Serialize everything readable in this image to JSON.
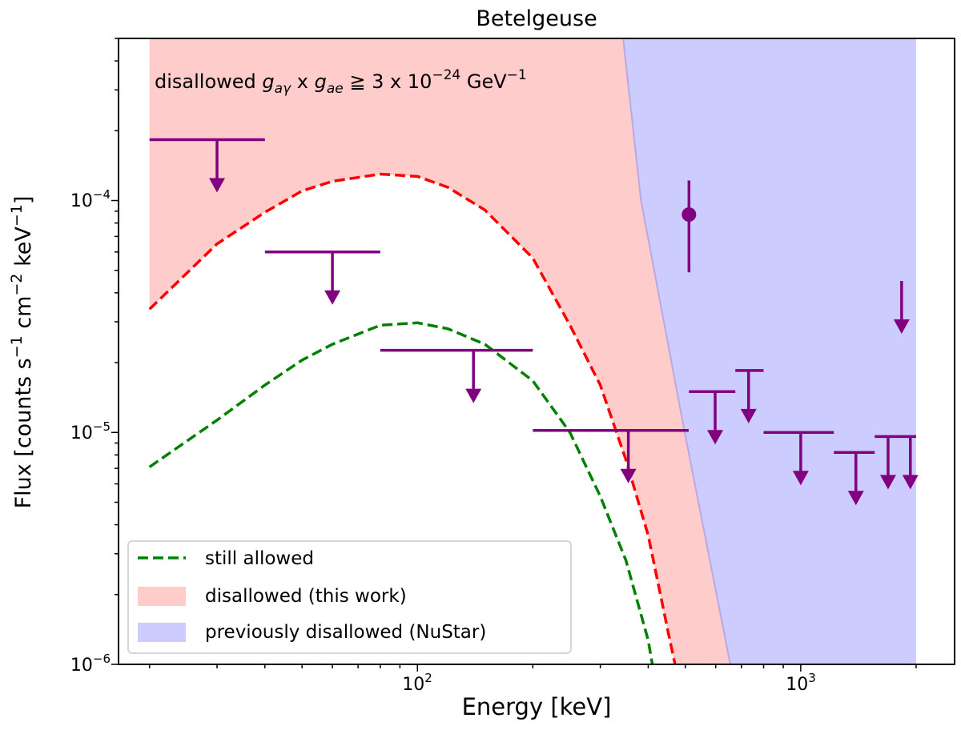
{
  "chart_data": {
    "type": "line",
    "title": "Betelgeuse",
    "xlabel": "Energy [keV]",
    "ylabel": {
      "base": "Flux [counts s",
      "e1": "−1",
      "mid1": " cm",
      "e2": "−2",
      "mid2": " keV",
      "e3": "−1",
      "end": "]"
    },
    "xscale": "log",
    "yscale": "log",
    "xlim": [
      16.6,
      2520
    ],
    "ylim": [
      1e-06,
      0.0005
    ],
    "grid": false,
    "x_ticks": [
      {
        "value": 100,
        "base": "10",
        "exp": "2"
      },
      {
        "value": 1000,
        "base": "10",
        "exp": "3"
      }
    ],
    "y_ticks": [
      {
        "value": 1e-06,
        "base": "10",
        "exp": "−6"
      },
      {
        "value": 1e-05,
        "base": "10",
        "exp": "−5"
      },
      {
        "value": 0.0001,
        "base": "10",
        "exp": "−4"
      }
    ],
    "annotation": {
      "pre": "disallowed ",
      "g1": "g",
      "s1": "aγ",
      "mid": " x ",
      "g2": "g",
      "s2": "ae",
      "rel": " ≧ 3 x 10",
      "exp": "−24",
      "unit": " GeV",
      "uexp": "−1"
    },
    "legend": {
      "position": "lower-left",
      "entries": [
        {
          "label": "still allowed",
          "style": "dashed-line",
          "color": "#008000"
        },
        {
          "label": "disallowed (this work)",
          "style": "patch",
          "color": "#ffcccc"
        },
        {
          "label": "previously disallowed (NuStar)",
          "style": "patch",
          "color": "#ccccff"
        }
      ]
    },
    "series": [
      {
        "role": "disallowed-boundary",
        "color": "#ff0000",
        "style": "dashed",
        "x": [
          20,
          30,
          40,
          50,
          60,
          80,
          100,
          120,
          150,
          200,
          250,
          300,
          350,
          400,
          450,
          470
        ],
        "y": [
          3.4e-05,
          6.5e-05,
          8.9e-05,
          0.00011,
          0.000121,
          0.00013,
          0.000127,
          0.000114,
          9.1e-05,
          5.65e-05,
          2.9e-05,
          1.6e-05,
          7.6e-06,
          3.6e-06,
          1.4e-06,
          1e-06
        ]
      },
      {
        "name": "still allowed",
        "color": "#008000",
        "style": "dashed",
        "x": [
          20,
          30,
          40,
          50,
          60,
          80,
          100,
          120,
          150,
          200,
          250,
          300,
          350,
          400,
          410
        ],
        "y": [
          7.1e-06,
          1.13e-05,
          1.6e-05,
          2.05e-05,
          2.4e-05,
          2.9e-05,
          2.97e-05,
          2.8e-05,
          2.4e-05,
          1.67e-05,
          1e-05,
          5.3e-06,
          2.8e-06,
          1.27e-06,
          1e-06
        ]
      }
    ],
    "nustar_boundary": {
      "color": "#ccccff",
      "edge_color": "#b9a9e3",
      "x_max": 2000,
      "x": [
        344,
        383,
        498,
        655
      ],
      "y": [
        0.0005,
        0.0001,
        1e-05,
        1e-06
      ]
    },
    "upper_limits": {
      "color": "#800080",
      "items": [
        {
          "x_lo": 20,
          "x_hi": 40,
          "x_arrow": 30,
          "y": 0.000183
        },
        {
          "x_lo": 40,
          "x_hi": 80,
          "x_arrow": 60,
          "y": 6e-05
        },
        {
          "x_lo": 80,
          "x_hi": 200,
          "x_arrow": 140,
          "y": 2.26e-05
        },
        {
          "x_lo": 200,
          "x_hi": 510,
          "x_arrow": 355,
          "y": 1.02e-05
        },
        {
          "x_lo": 511,
          "x_hi": 675,
          "x_arrow": 598,
          "y": 1.5e-05
        },
        {
          "x_lo": 675,
          "x_hi": 800,
          "x_arrow": 731,
          "y": 1.85e-05
        },
        {
          "x_lo": 800,
          "x_hi": 1220,
          "x_arrow": 1000,
          "y": 1e-05
        },
        {
          "x_lo": 1220,
          "x_hi": 1560,
          "x_arrow": 1393,
          "y": 8.2e-06
        },
        {
          "x_lo": 1560,
          "x_hi": 1800,
          "x_arrow": 1690,
          "y": 9.6e-06
        },
        {
          "x_lo": 1800,
          "x_hi": 2000,
          "x_arrow": 1932,
          "y": 9.6e-06
        },
        {
          "x_lo": 1833,
          "x_hi": 1833,
          "x_arrow": 1833,
          "y": 4.5e-05
        }
      ]
    },
    "detections": [
      {
        "x": 511,
        "y": 8.7e-05,
        "y_lo": 4.9e-05,
        "y_hi": 0.000122,
        "color": "#800080"
      }
    ]
  }
}
